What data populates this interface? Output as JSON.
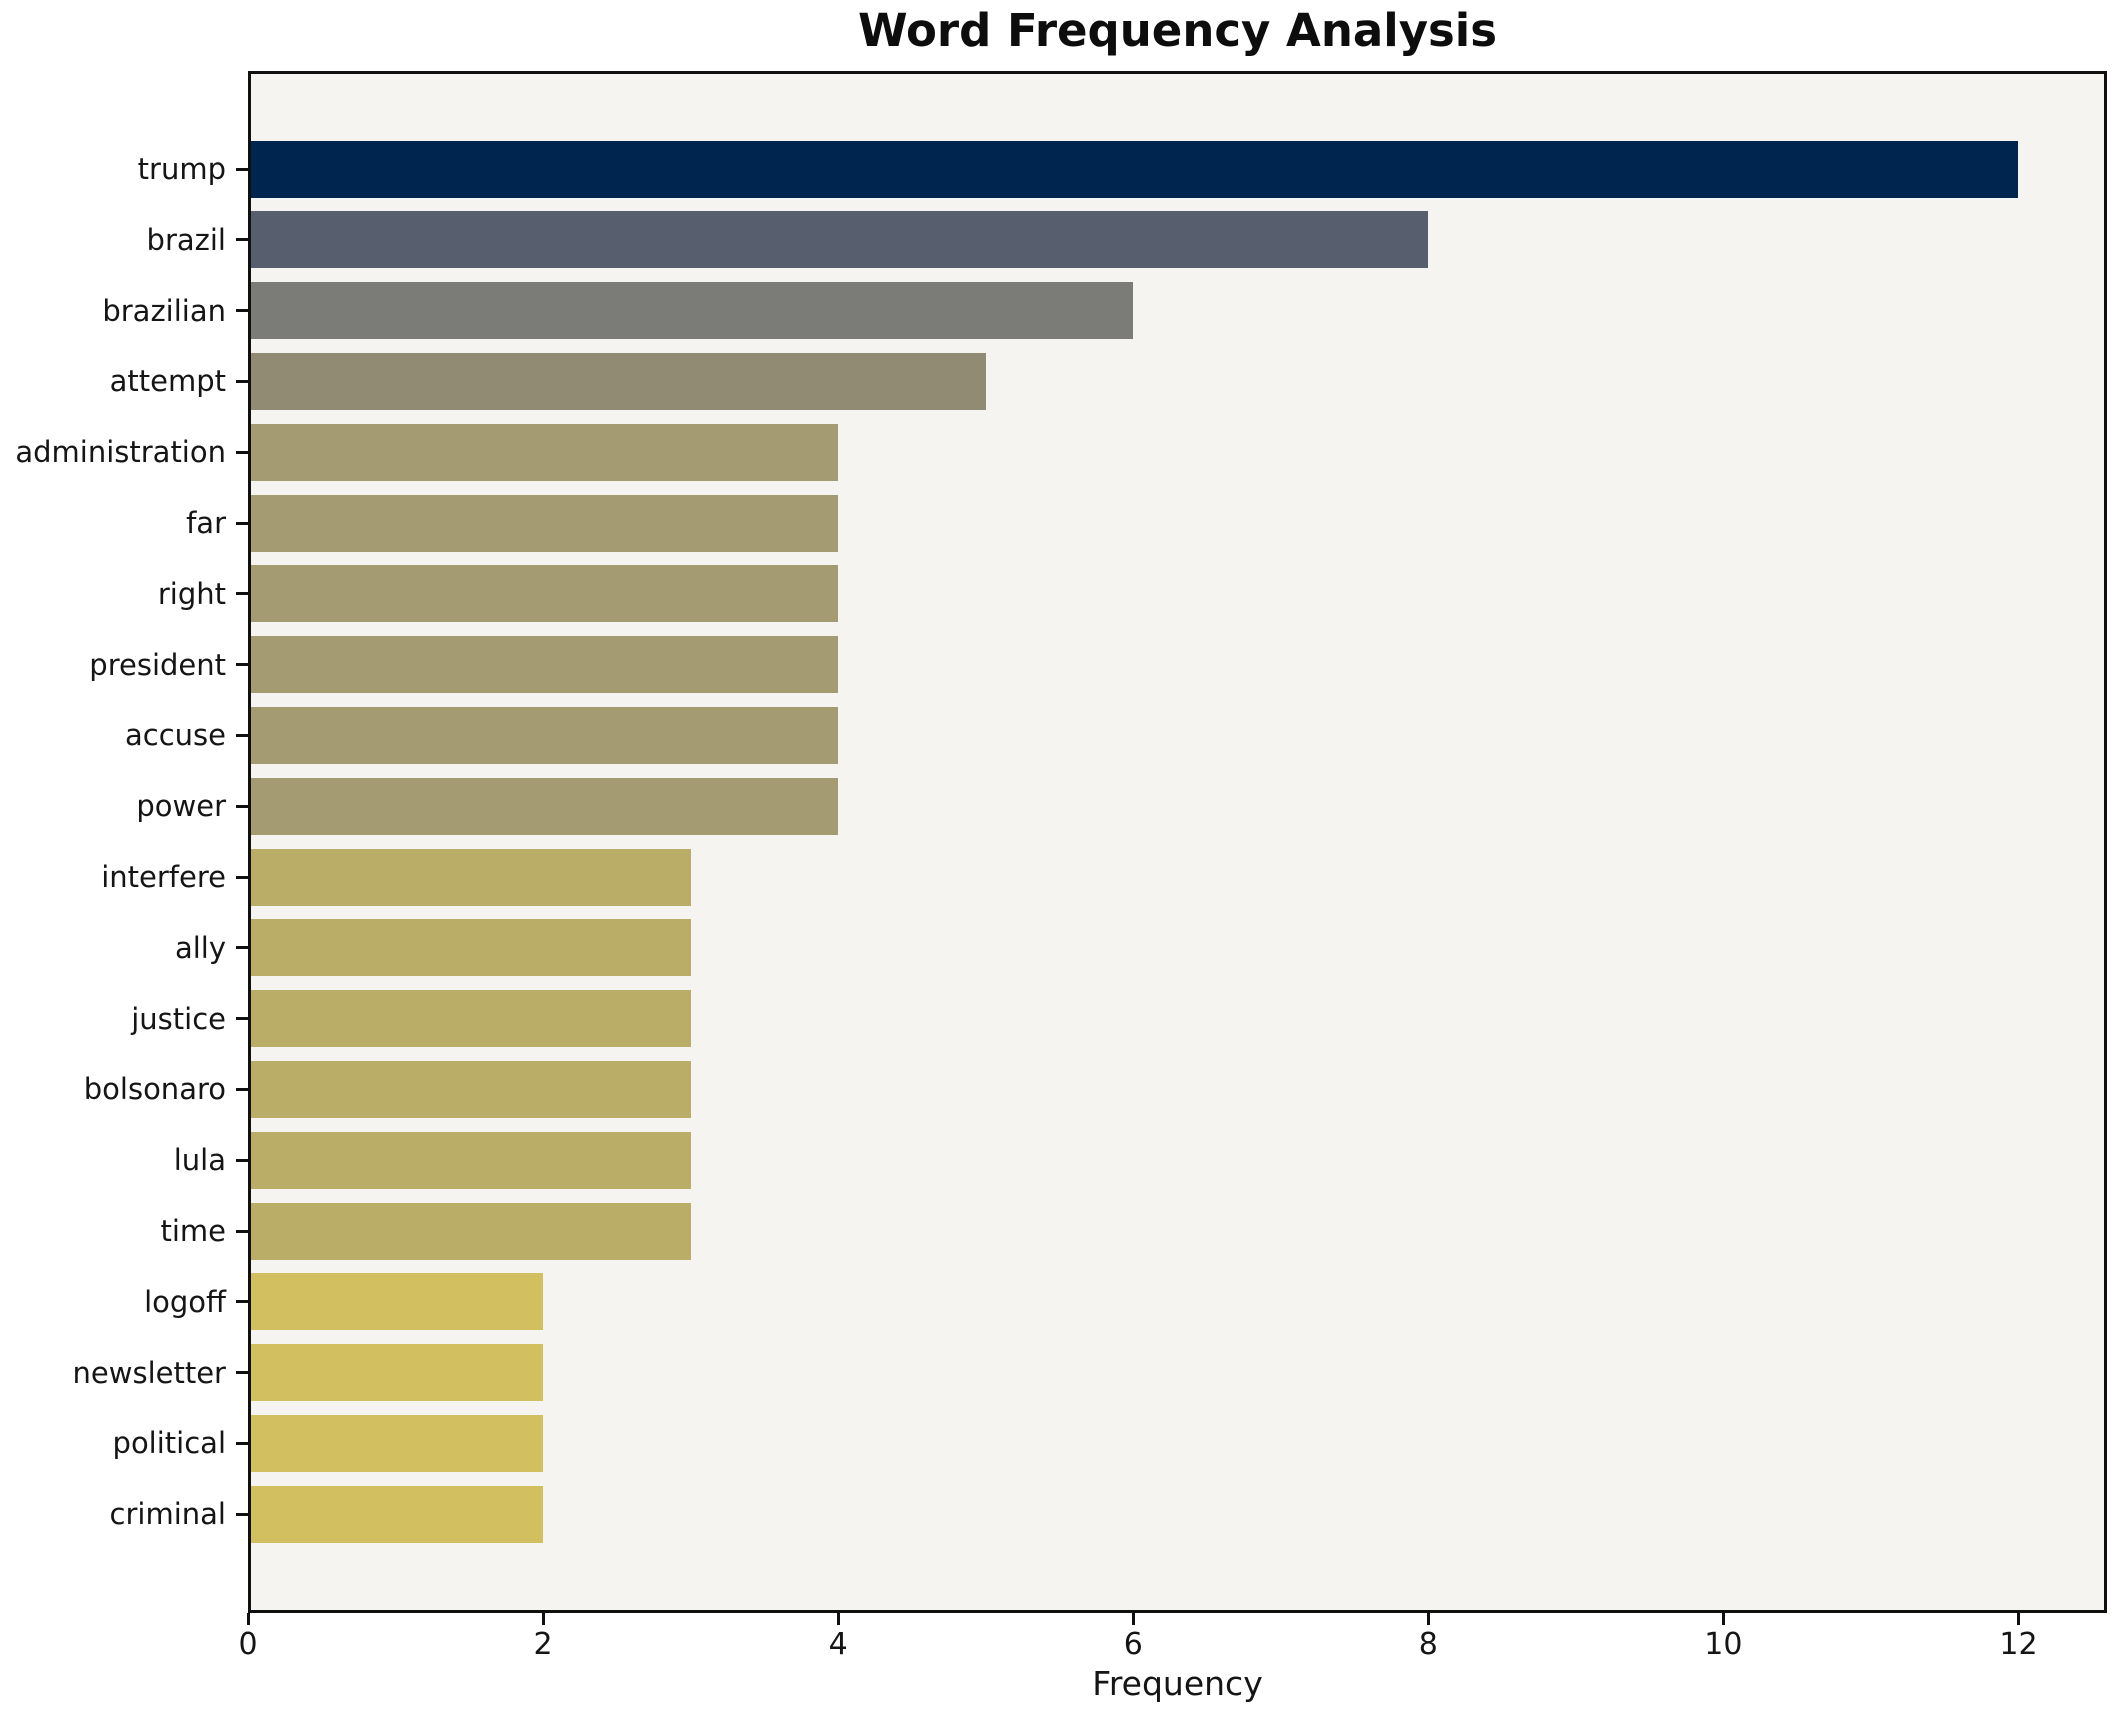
{
  "chart_data": {
    "type": "bar",
    "orientation": "horizontal",
    "title": "Word Frequency Analysis",
    "xlabel": "Frequency",
    "ylabel": "",
    "categories": [
      "trump",
      "brazil",
      "brazilian",
      "attempt",
      "administration",
      "far",
      "right",
      "president",
      "accuse",
      "power",
      "interfere",
      "ally",
      "justice",
      "bolsonaro",
      "lula",
      "time",
      "logoff",
      "newsletter",
      "political",
      "criminal"
    ],
    "values": [
      12,
      8,
      6,
      5,
      4,
      4,
      4,
      4,
      4,
      4,
      3,
      3,
      3,
      3,
      3,
      3,
      2,
      2,
      2,
      2
    ],
    "bar_colors": [
      "#00254e",
      "#575e6e",
      "#7b7b77",
      "#918b74",
      "#a49b72",
      "#a49b72",
      "#a49b72",
      "#a49b72",
      "#a49b72",
      "#a49b72",
      "#b9ad67",
      "#b9ad67",
      "#b9ad67",
      "#b9ad67",
      "#b9ad67",
      "#b9ad67",
      "#d2bf5f",
      "#d2bf5f",
      "#d2bf5f",
      "#d2bf5f"
    ],
    "x_ticks": [
      0,
      2,
      4,
      6,
      8,
      10,
      12
    ],
    "x_tick_labels": [
      "0",
      "2",
      "4",
      "6",
      "8",
      "10",
      "12"
    ],
    "xlim": [
      0,
      12.6
    ],
    "grid": false,
    "legend": null,
    "colors": {
      "figure_background": "#ffffff",
      "plot_background": "#f5f4f1",
      "spine": "#101010",
      "text": "#151515"
    }
  }
}
